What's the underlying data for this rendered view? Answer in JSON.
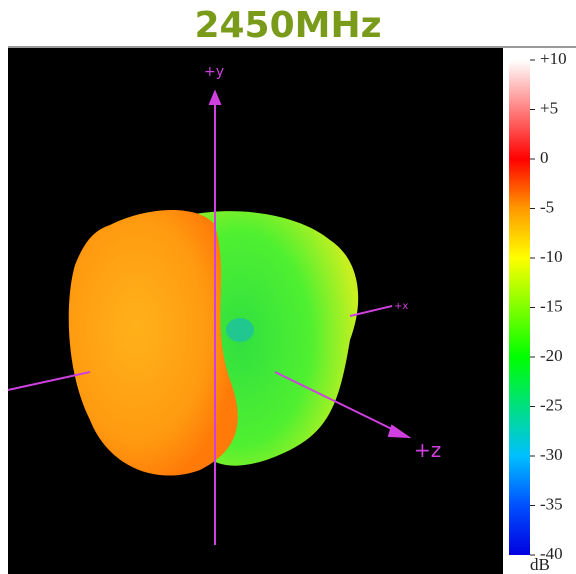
{
  "title": "2450MHz",
  "axes": {
    "y": "+y",
    "x": "+x",
    "z": "+z"
  },
  "colorbar": {
    "unit": "dB",
    "range": [
      -40,
      10
    ],
    "ticks": [
      {
        "value": 10,
        "label": "+10"
      },
      {
        "value": 5,
        "label": "+5"
      },
      0,
      -5,
      -10,
      -15,
      -20,
      -25,
      -30,
      -35,
      -40
    ]
  }
}
